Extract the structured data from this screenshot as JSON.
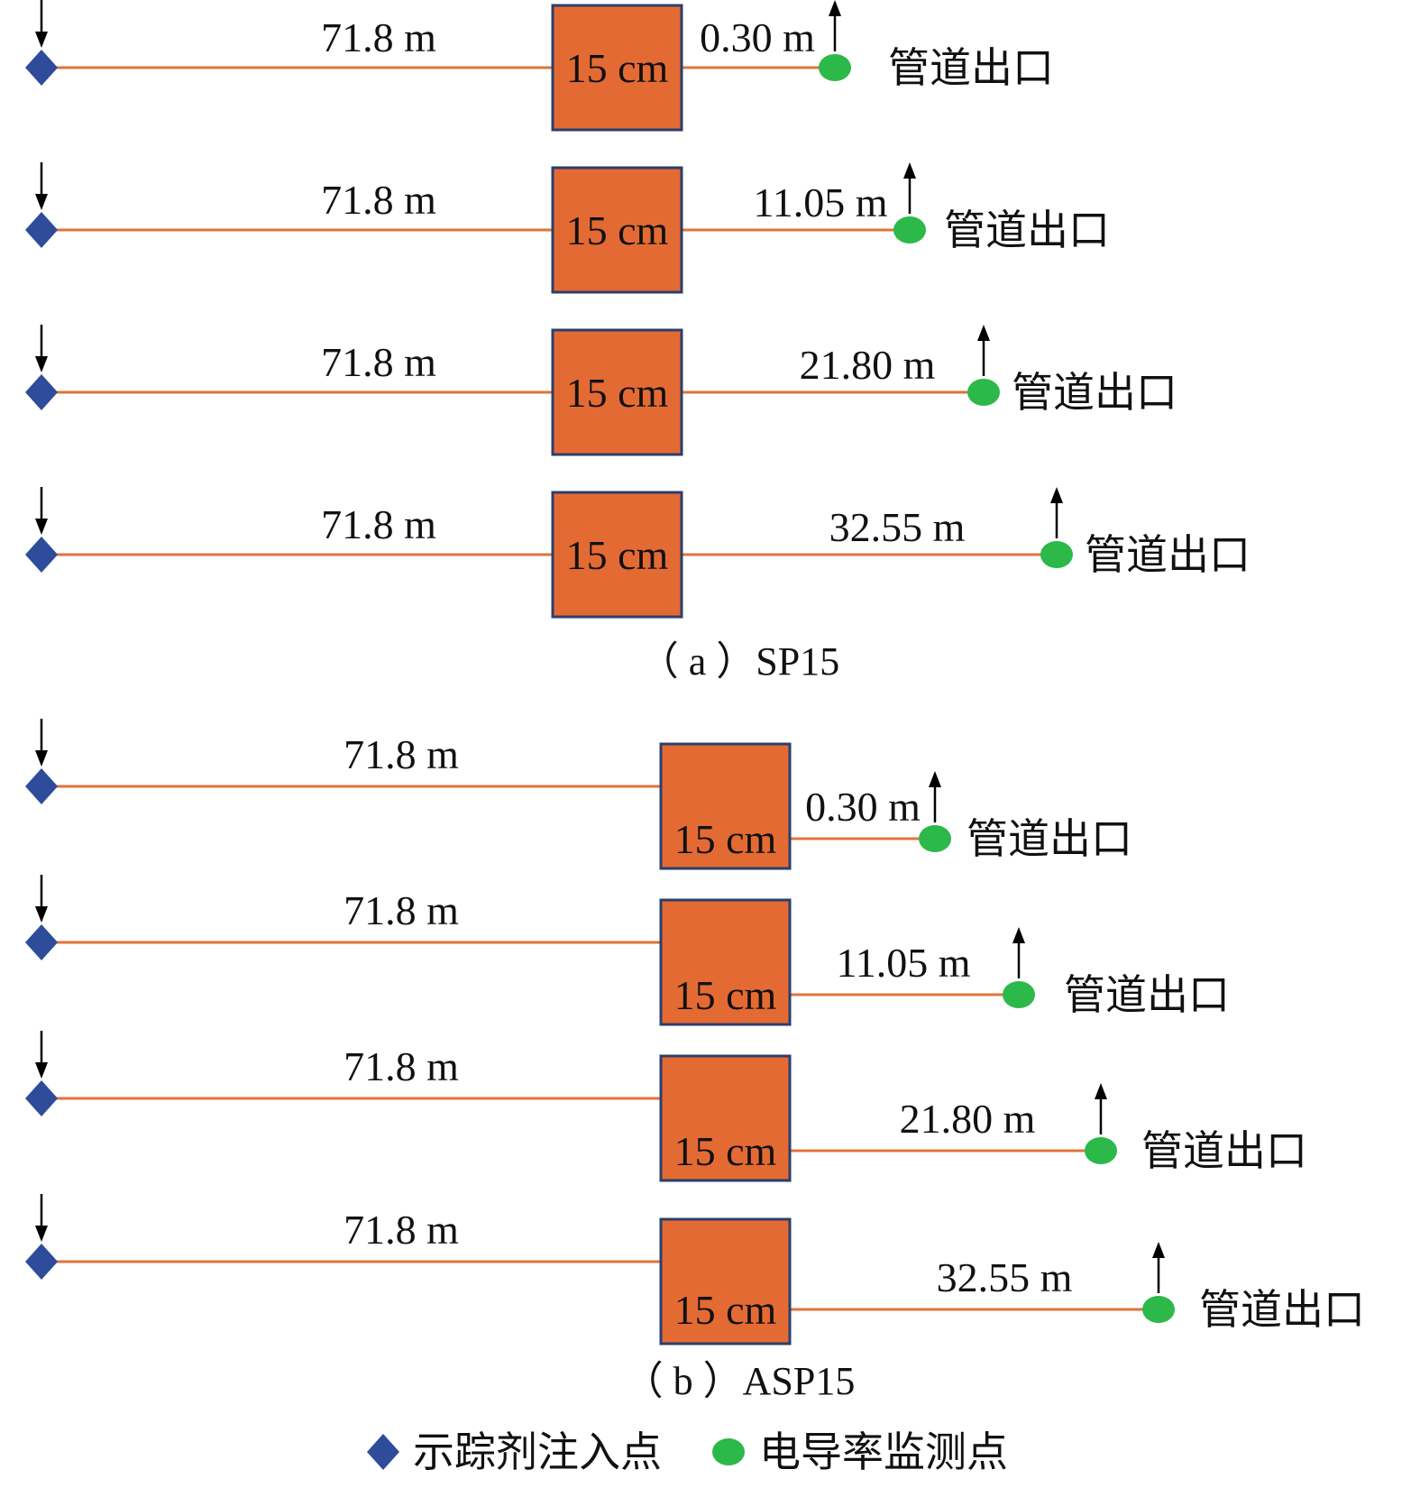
{
  "colors": {
    "pipe": "#E0733A",
    "box_fill": "#E46A34",
    "box_stroke": "#2B3F6B",
    "injection": "#2E4C9A",
    "monitor": "#2DB84A",
    "arrow": "#000000"
  },
  "panels": [
    {
      "caption": "（ a ）SP15",
      "rows": [
        {
          "upstream_label": "71.8 m",
          "box_label": "15 cm",
          "downstream_label": "0.30 m",
          "outlet_label": "管道出口"
        },
        {
          "upstream_label": "71.8 m",
          "box_label": "15 cm",
          "downstream_label": "11.05 m",
          "outlet_label": "管道出口"
        },
        {
          "upstream_label": "71.8 m",
          "box_label": "15 cm",
          "downstream_label": "21.80 m",
          "outlet_label": "管道出口"
        },
        {
          "upstream_label": "71.8 m",
          "box_label": "15 cm",
          "downstream_label": "32.55 m",
          "outlet_label": "管道出口"
        }
      ]
    },
    {
      "caption": "（ b ）ASP15",
      "rows": [
        {
          "upstream_label": "71.8 m",
          "box_label": "15 cm",
          "downstream_label": "0.30 m",
          "outlet_label": "管道出口"
        },
        {
          "upstream_label": "71.8 m",
          "box_label": "15 cm",
          "downstream_label": "11.05 m",
          "outlet_label": "管道出口"
        },
        {
          "upstream_label": "71.8 m",
          "box_label": "15 cm",
          "downstream_label": "21.80 m",
          "outlet_label": "管道出口"
        },
        {
          "upstream_label": "71.8 m",
          "box_label": "15 cm",
          "downstream_label": "32.55 m",
          "outlet_label": "管道出口"
        }
      ]
    }
  ],
  "legend": {
    "injection_label": "示踪剂注入点",
    "monitor_label": "电导率监测点"
  }
}
